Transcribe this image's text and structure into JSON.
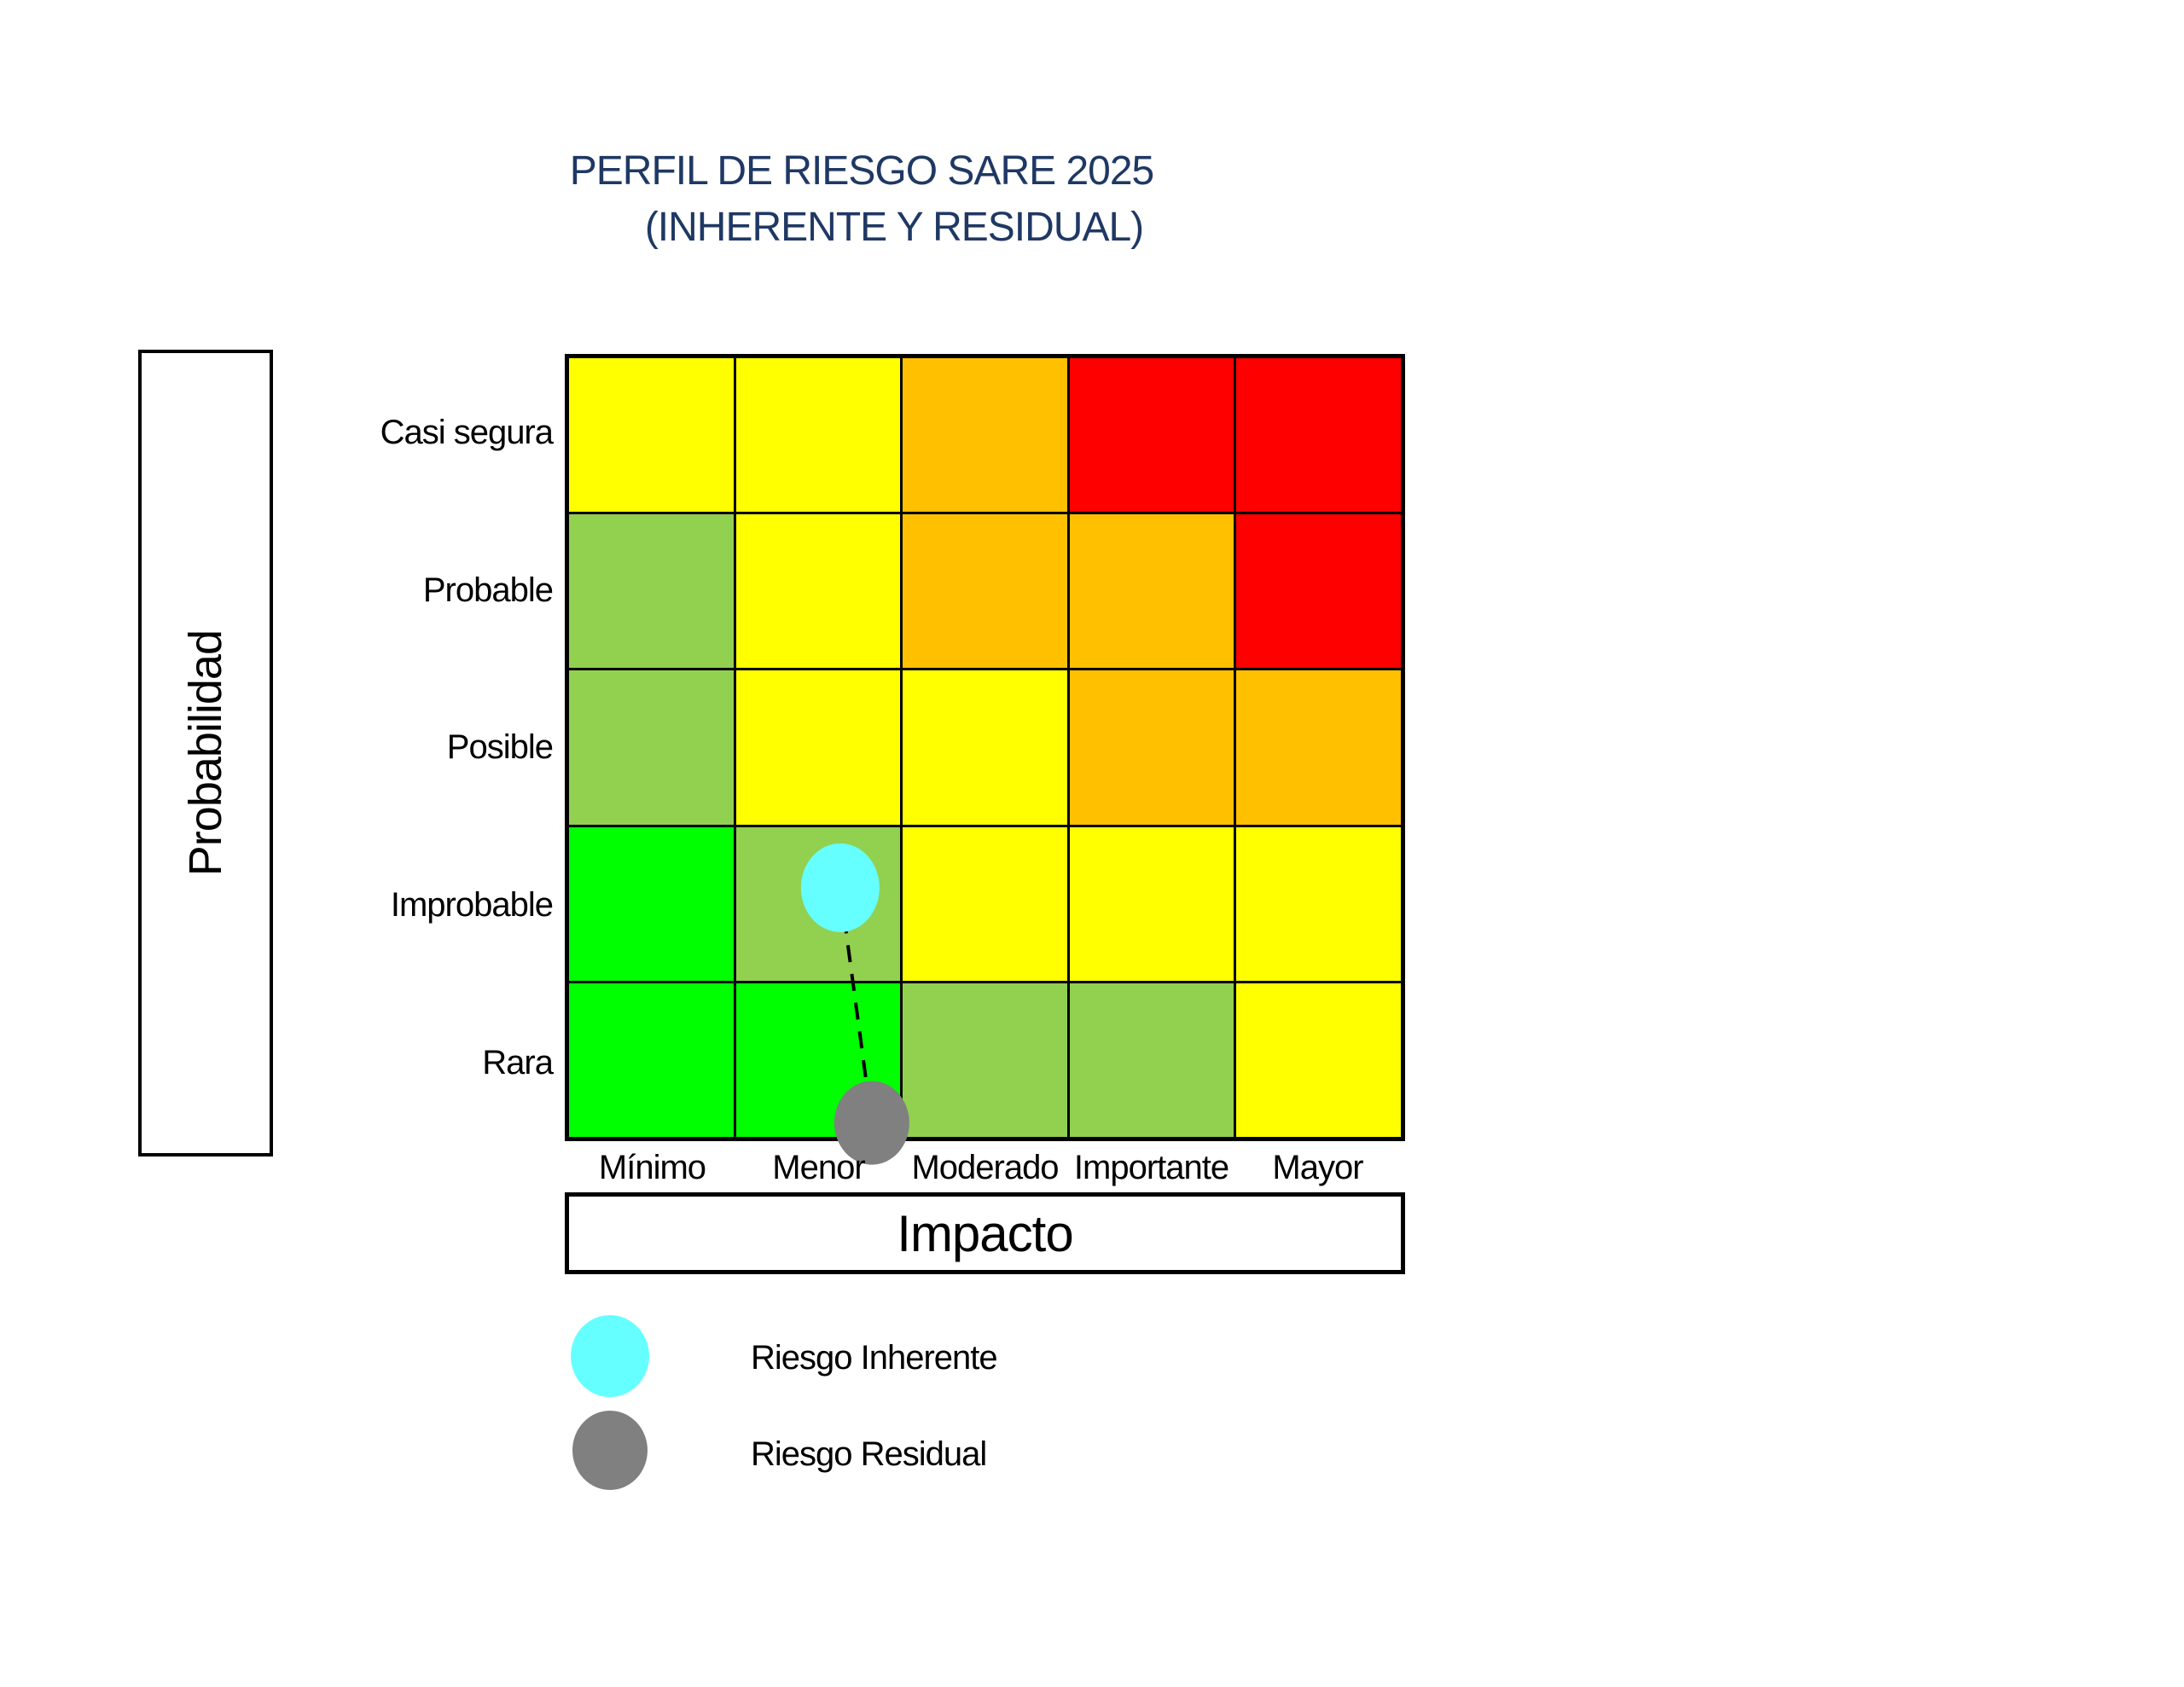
{
  "title": {
    "line1": "PERFIL DE RIESGO SARE 2025",
    "line2": "(INHERENTE Y RESIDUAL)",
    "color": "#1F3864"
  },
  "axes": {
    "y_title": "Probabilidad",
    "x_title": "Impacto",
    "y_labels": [
      "Casi segura",
      "Probable",
      "Posible",
      "Improbable",
      "Rara"
    ],
    "x_labels": [
      "Mínimo",
      "Menor",
      "Moderado",
      "Importante",
      "Mayor"
    ]
  },
  "legend": {
    "items": [
      {
        "label": "Riesgo Inherente",
        "color": "#66FFFF"
      },
      {
        "label": "Riesgo Residual",
        "color": "#808080"
      }
    ]
  },
  "chart_data": {
    "type": "heatmap",
    "title": "PERFIL DE RIESGO SARE 2025 (INHERENTE Y RESIDUAL)",
    "xlabel": "Impacto",
    "ylabel": "Probabilidad",
    "x_categories": [
      "Mínimo",
      "Menor",
      "Moderado",
      "Importante",
      "Mayor"
    ],
    "y_categories": [
      "Casi segura",
      "Probable",
      "Posible",
      "Improbable",
      "Rara"
    ],
    "palette": {
      "green": "#00FF00",
      "lightgreen": "#92D050",
      "yellow": "#FFFF00",
      "orange": "#FFC000",
      "red": "#FF0000"
    },
    "cells": [
      [
        "yellow",
        "yellow",
        "orange",
        "red",
        "red"
      ],
      [
        "lightgreen",
        "yellow",
        "orange",
        "orange",
        "red"
      ],
      [
        "lightgreen",
        "yellow",
        "yellow",
        "orange",
        "orange"
      ],
      [
        "green",
        "lightgreen",
        "yellow",
        "yellow",
        "yellow"
      ],
      [
        "green",
        "green",
        "lightgreen",
        "lightgreen",
        "yellow"
      ]
    ],
    "points": [
      {
        "name": "Riesgo Inherente",
        "color": "#66FFFF",
        "impacto": "Menor",
        "probabilidad": "Improbable",
        "col": 1,
        "row": 3,
        "fx": 0.63,
        "fy": 0.4
      },
      {
        "name": "Riesgo Residual",
        "color": "#808080",
        "impacto": "Menor",
        "probabilidad": "Rara",
        "col": 1,
        "row": 4,
        "fx": 0.82,
        "fy": 0.91
      }
    ],
    "connector": {
      "from": "Riesgo Inherente",
      "to": "Riesgo Residual",
      "style": "dashed",
      "color": "#000000"
    },
    "grid": "on",
    "legend_position": "bottom-left"
  }
}
